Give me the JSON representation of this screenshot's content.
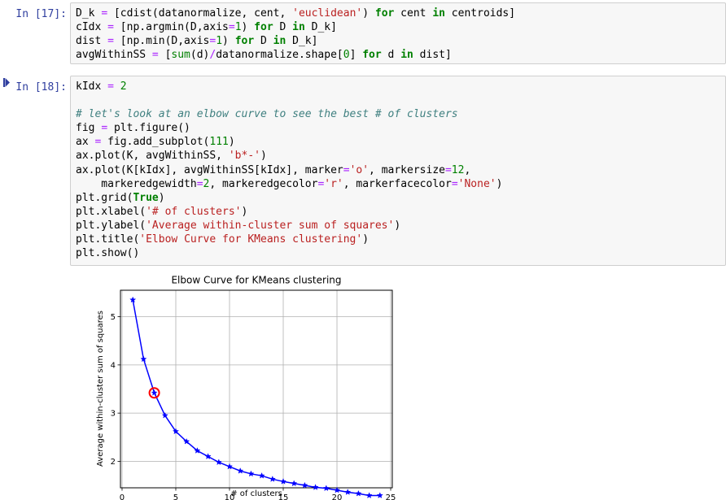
{
  "cells": [
    {
      "prompt": "In [17]:",
      "lines": [
        "D_k = [cdist(datanormalize, cent, 'euclidean') for cent in centroids]",
        "cIdx = [np.argmin(D,axis=1) for D in D_k]",
        "dist = [np.min(D,axis=1) for D in D_k]",
        "avgWithinSS = [sum(d)/datanormalize.shape[0] for d in dist]"
      ]
    },
    {
      "prompt": "In [18]:",
      "lines": [
        "kIdx = 2",
        "",
        "# let's look at an elbow curve to see the best # of clusters",
        "fig = plt.figure()",
        "ax = fig.add_subplot(111)",
        "ax.plot(K, avgWithinSS, 'b*-')",
        "ax.plot(K[kIdx], avgWithinSS[kIdx], marker='o', markersize=12,",
        "    markeredgewidth=2, markeredgecolor='r', markerfacecolor='None')",
        "plt.grid(True)",
        "plt.xlabel('# of clusters')",
        "plt.ylabel('Average within-cluster sum of squares')",
        "plt.title('Elbow Curve for KMeans clustering')",
        "plt.show()"
      ]
    }
  ],
  "chart_data": {
    "type": "line",
    "title": "Elbow Curve for KMeans clustering",
    "xlabel": "# of clusters",
    "ylabel": "Average within-cluster sum of squares",
    "xlim": [
      -0.15,
      25.15
    ],
    "ylim": [
      1.45,
      5.55
    ],
    "xticks": [
      0,
      5,
      10,
      15,
      20,
      25
    ],
    "yticks": [
      2,
      3,
      4,
      5
    ],
    "grid": true,
    "series": [
      {
        "color": "#0000ff",
        "marker": "star",
        "x": [
          1,
          2,
          3,
          4,
          5,
          6,
          7,
          8,
          9,
          10,
          11,
          12,
          13,
          14,
          15,
          16,
          17,
          18,
          19,
          20,
          21,
          22,
          23,
          24
        ],
        "y": [
          5.35,
          4.12,
          3.42,
          2.95,
          2.62,
          2.41,
          2.22,
          2.1,
          1.98,
          1.89,
          1.8,
          1.74,
          1.7,
          1.63,
          1.58,
          1.54,
          1.5,
          1.46,
          1.44,
          1.4,
          1.36,
          1.33,
          1.29,
          1.29
        ]
      }
    ],
    "highlight": {
      "x": 3,
      "y": 3.42,
      "edge_color": "#ff0000",
      "marker": "circle"
    }
  }
}
